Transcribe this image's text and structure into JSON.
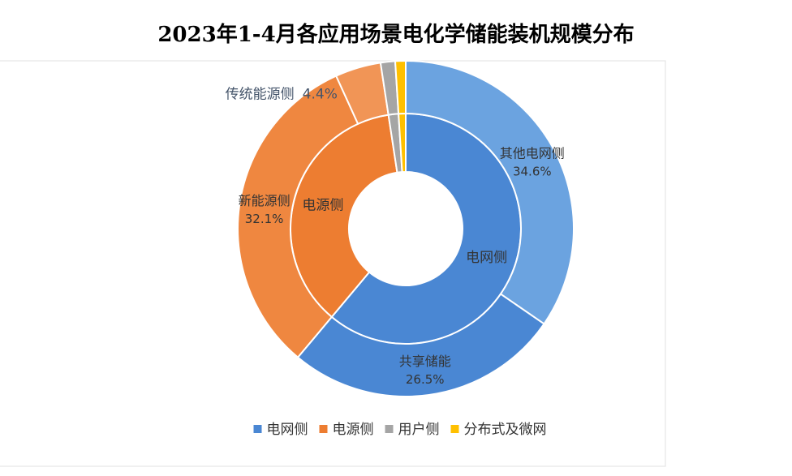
{
  "chart_data": {
    "type": "nested-donut",
    "title": "2023年1-4月各应用场景电化学储能装机规模分布",
    "legend": "bottom",
    "categories": [
      "电网侧",
      "电源侧",
      "用户侧",
      "分布式及微网"
    ],
    "values": [
      61.1,
      36.5,
      1.4,
      1.0
    ],
    "colors": [
      "#4a87d3",
      "#ed7d31",
      "#a5a5a5",
      "#ffc000"
    ],
    "outer": {
      "categories": [
        "其他电网侧",
        "共享储能",
        "新能源侧",
        "传统能源侧",
        null,
        null
      ],
      "values": [
        34.6,
        26.5,
        32.1,
        4.4,
        1.4,
        1.0
      ],
      "value_labels": [
        "34.6%",
        "26.5%",
        "32.1%",
        "4.4%",
        null,
        null
      ],
      "colors": [
        "#6ba3e0",
        "#4a87d3",
        "#ef8740",
        "#f19556",
        "#a5a5a5",
        "#ffc000"
      ]
    }
  }
}
